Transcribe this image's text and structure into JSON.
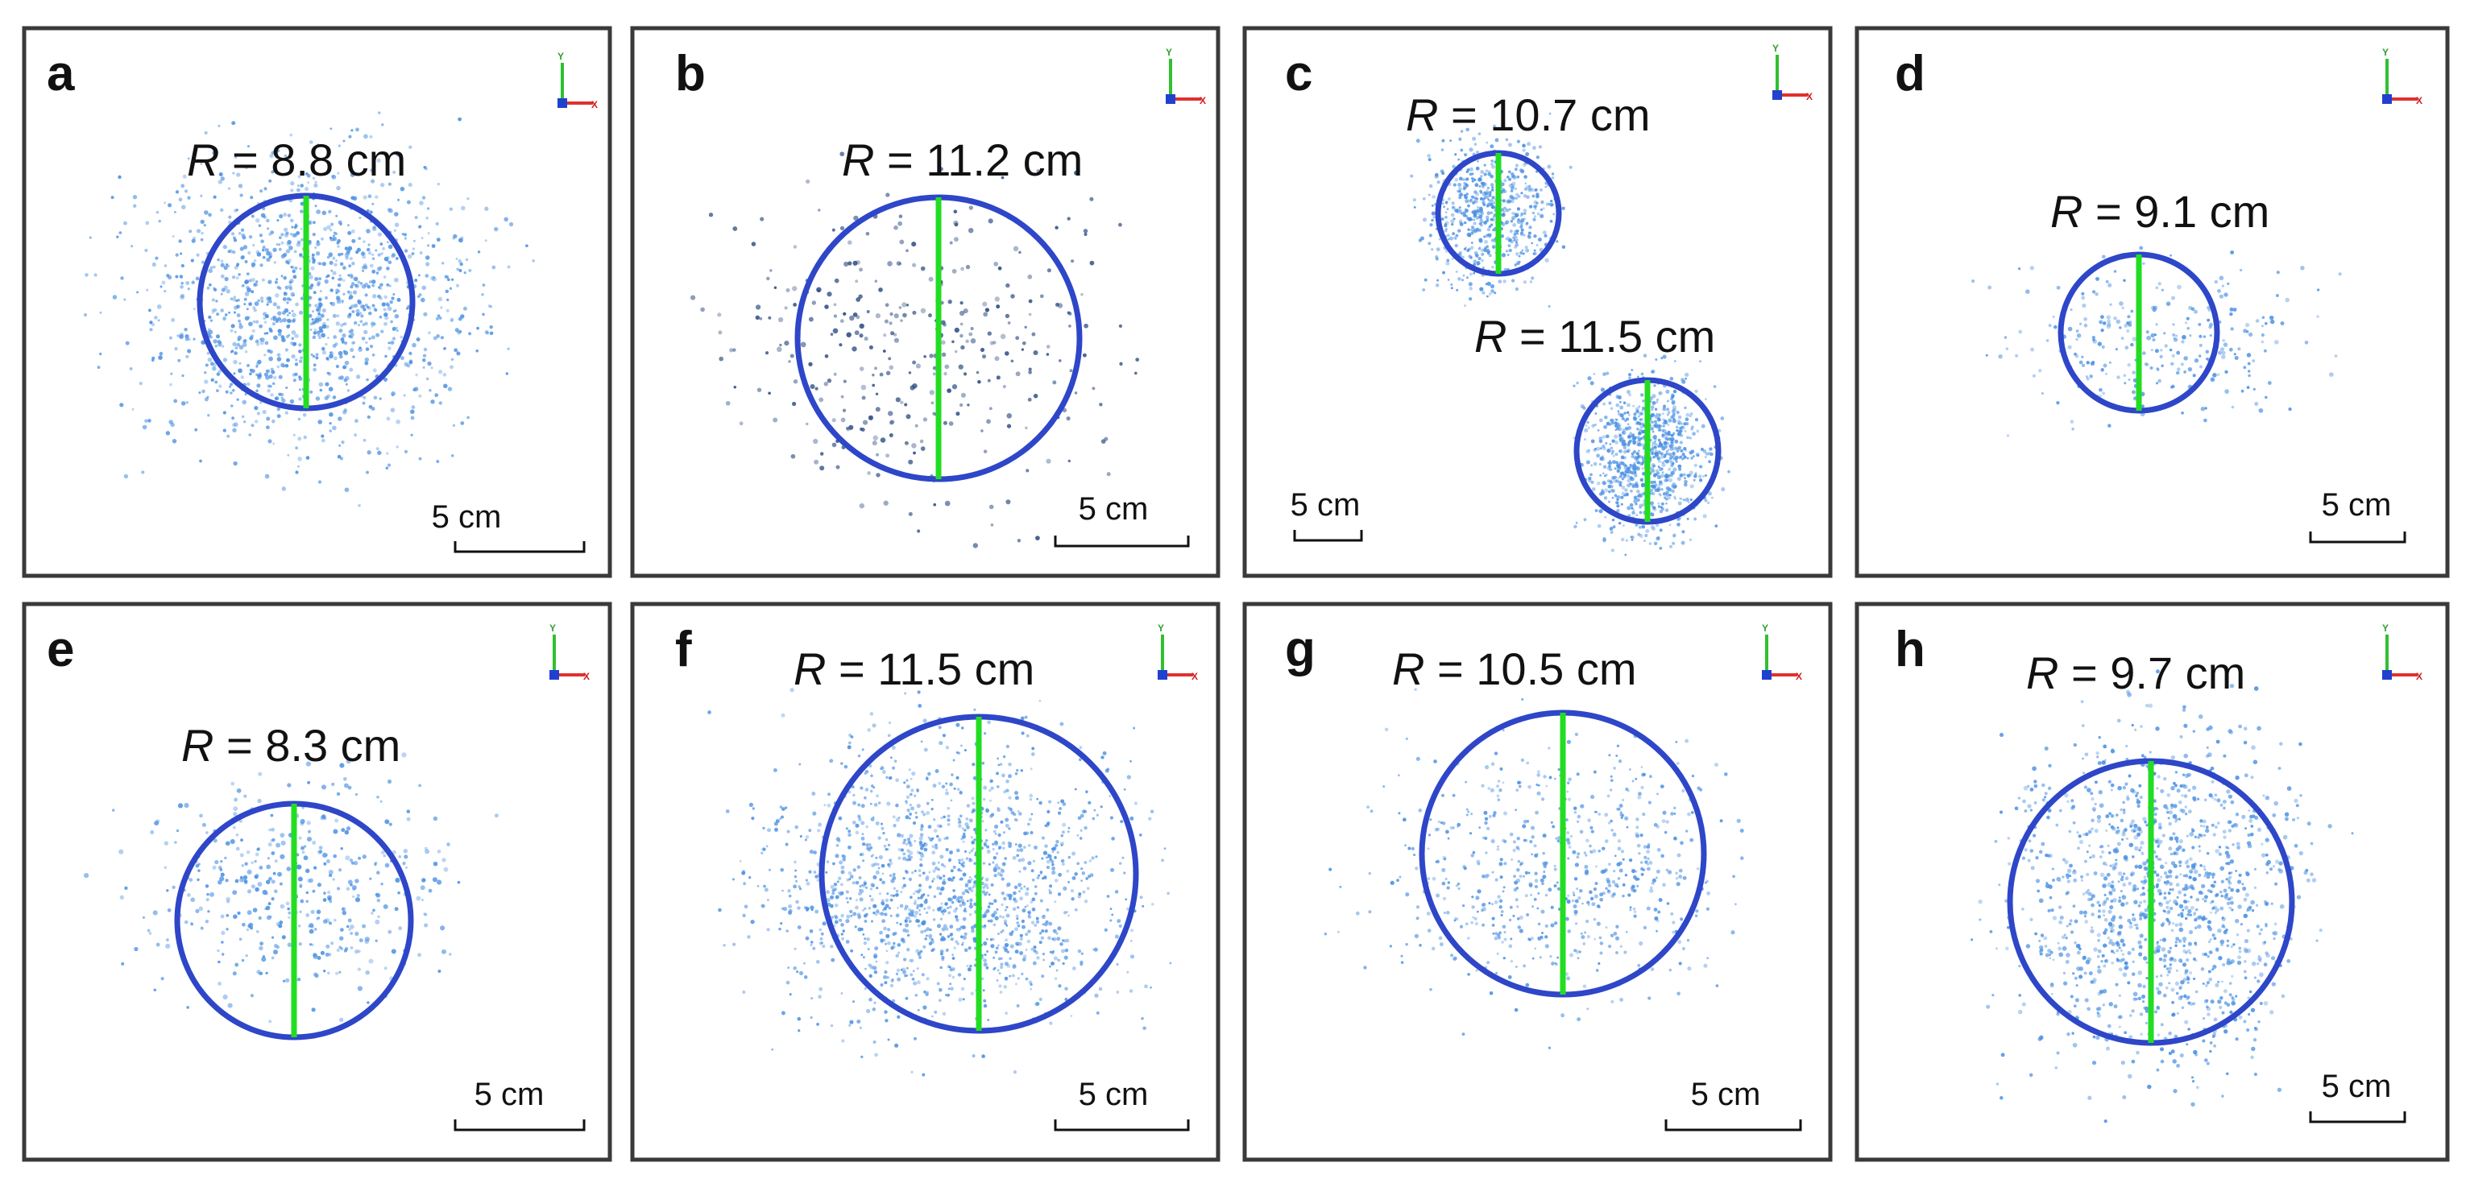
{
  "panels": [
    {
      "letter": "a",
      "circles": [
        {
          "symbol": "R",
          "value_text": " = 8.8 cm"
        }
      ],
      "scale_label": "5 cm"
    },
    {
      "letter": "b",
      "circles": [
        {
          "symbol": "R",
          "value_text": " = 11.2 cm"
        }
      ],
      "scale_label": "5 cm"
    },
    {
      "letter": "c",
      "circles": [
        {
          "symbol": "R",
          "value_text": " = 10.7 cm"
        },
        {
          "symbol": "R",
          "value_text": " = 11.5 cm"
        }
      ],
      "scale_label": "5 cm"
    },
    {
      "letter": "d",
      "circles": [
        {
          "symbol": "R",
          "value_text": " = 9.1 cm"
        }
      ],
      "scale_label": "5 cm"
    },
    {
      "letter": "e",
      "circles": [
        {
          "symbol": "R",
          "value_text": " = 8.3 cm"
        }
      ],
      "scale_label": "5 cm"
    },
    {
      "letter": "f",
      "circles": [
        {
          "symbol": "R",
          "value_text": " = 11.5 cm"
        }
      ],
      "scale_label": "5 cm"
    },
    {
      "letter": "g",
      "circles": [
        {
          "symbol": "R",
          "value_text": " = 10.5 cm"
        }
      ],
      "scale_label": "5 cm"
    },
    {
      "letter": "h",
      "circles": [
        {
          "symbol": "R",
          "value_text": " = 9.7 cm"
        }
      ],
      "scale_label": "5 cm"
    }
  ],
  "axis_indicator": {
    "y_label": "Y",
    "x_label": "X"
  },
  "colors": {
    "circle": "#2e46c8",
    "diameter": "#22dd22",
    "points_light": "#4a90e2",
    "points_dark": "#2a4a80",
    "frame": "#3a3a3a"
  }
}
